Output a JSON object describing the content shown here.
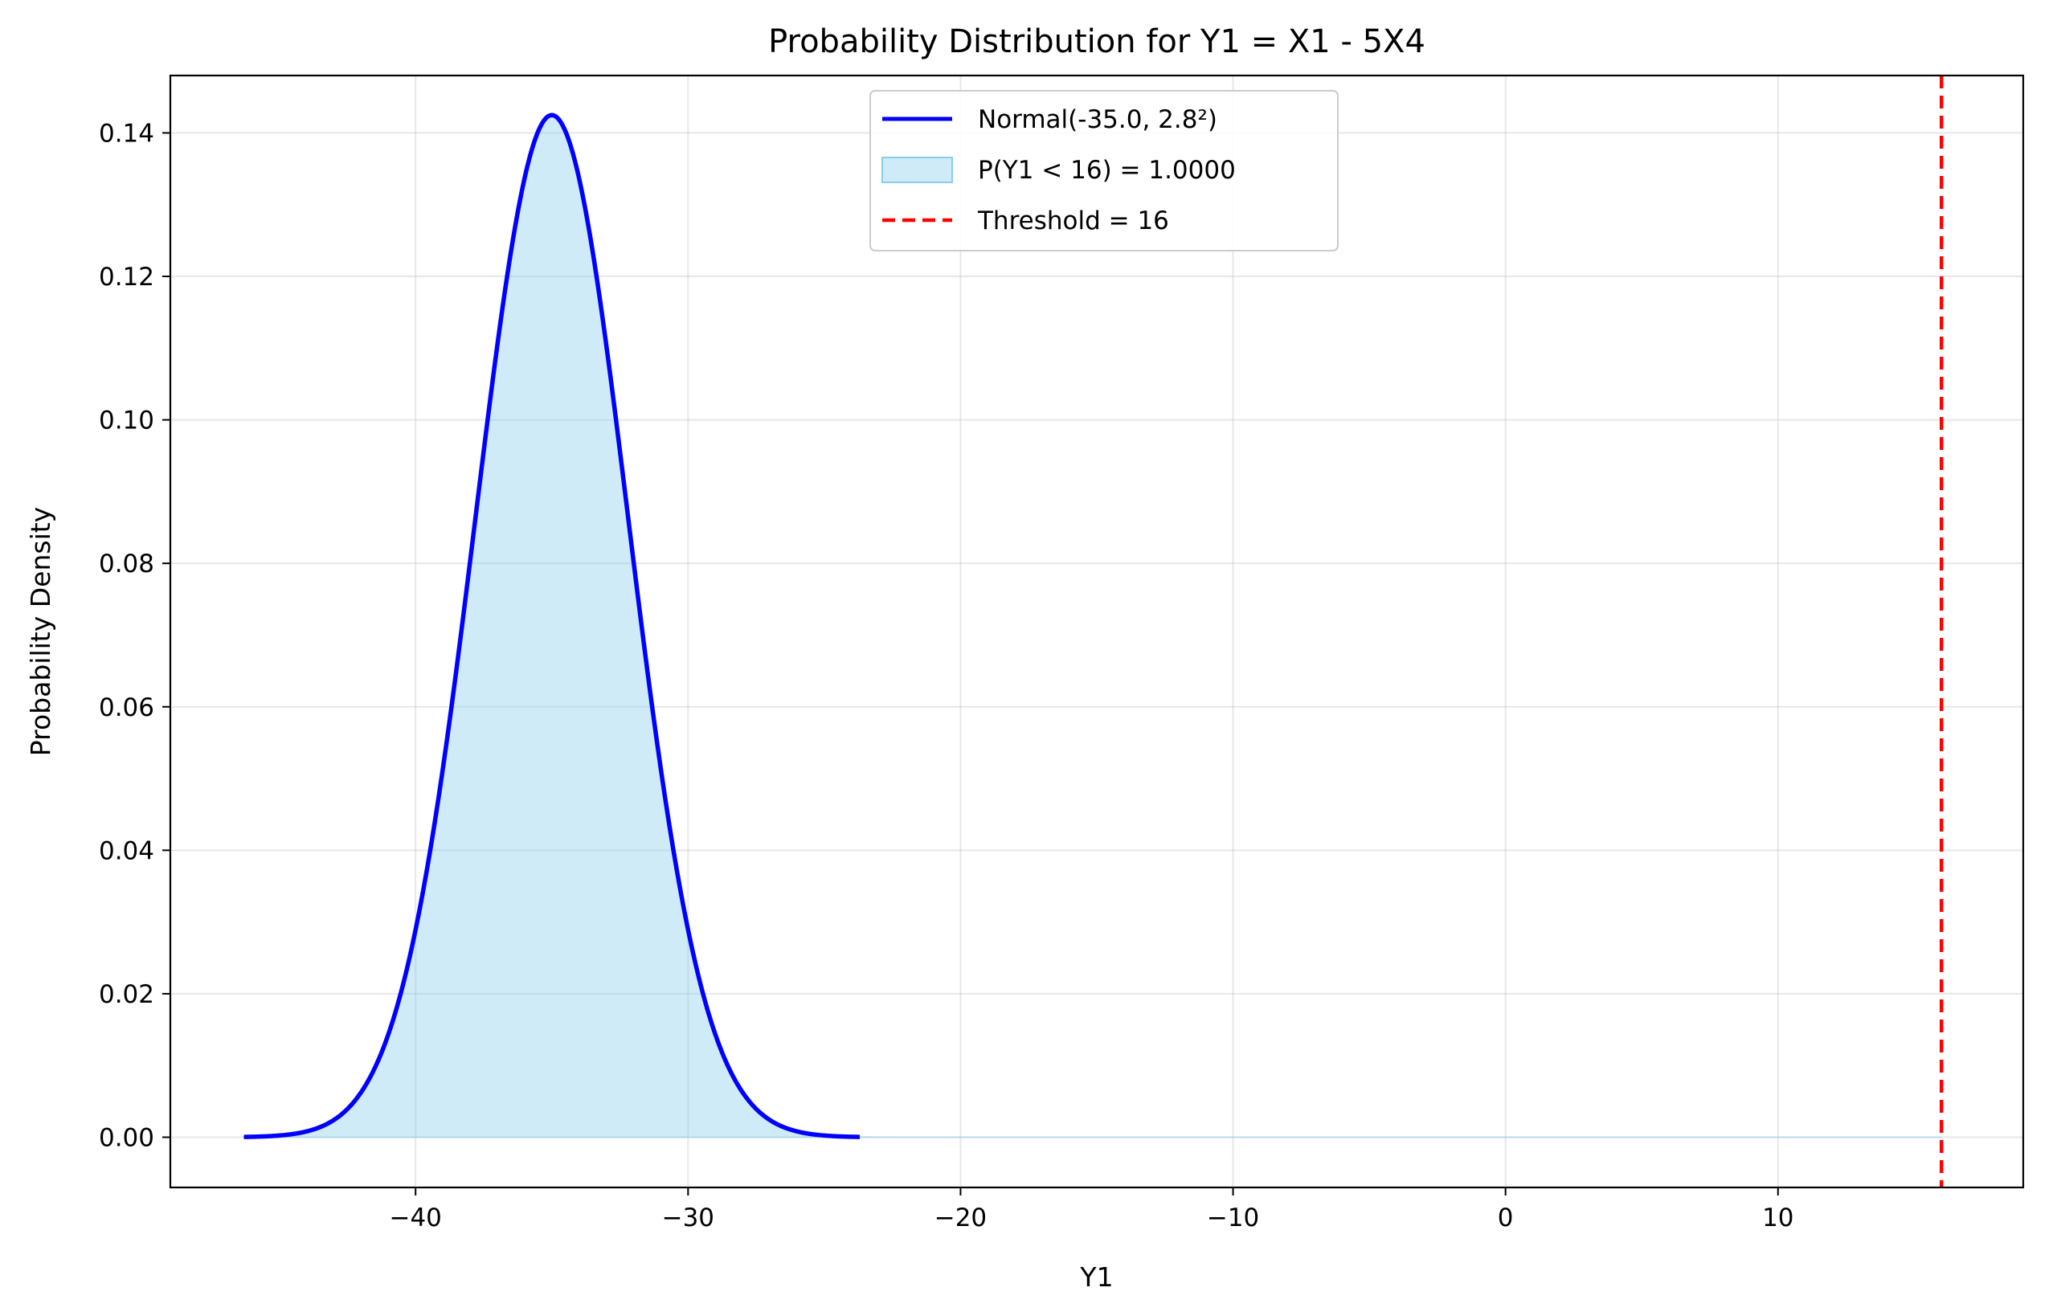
{
  "chart_data": {
    "type": "area",
    "title": "Probability Distribution for Y1 = X1 - 5X4",
    "xlabel": "Y1",
    "ylabel": "Probability Density",
    "xlim": [
      -49,
      19
    ],
    "ylim": [
      -0.007,
      0.148
    ],
    "xticks": [
      -40,
      -30,
      -20,
      -10,
      0,
      10
    ],
    "xtick_labels": [
      "−40",
      "−30",
      "−20",
      "−10",
      "0",
      "10"
    ],
    "yticks": [
      0.0,
      0.02,
      0.04,
      0.06,
      0.08,
      0.1,
      0.12,
      0.14
    ],
    "ytick_labels": [
      "0.00",
      "0.02",
      "0.04",
      "0.06",
      "0.08",
      "0.10",
      "0.12",
      "0.14"
    ],
    "grid": true,
    "legend_position": "upper-center",
    "series": [
      {
        "name": "Normal(-35.0, 2.8²)",
        "kind": "line",
        "color": "#0000ff",
        "mean": -35.0,
        "sd": 2.8,
        "x_range": [
          -46.3,
          -23.7
        ]
      },
      {
        "name": "P(Y1 < 16) = 1.0000",
        "kind": "filled-area",
        "color": "#87ceeb",
        "x_range": [
          -46.3,
          16
        ]
      },
      {
        "name": "Threshold = 16",
        "kind": "vertical-dashed-line",
        "color": "#ff0000",
        "x": 16
      }
    ]
  }
}
